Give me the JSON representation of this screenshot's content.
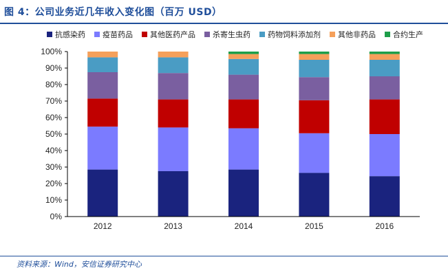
{
  "figure": {
    "title": "图 4：公司业务近几年收入变化图（百万 USD）",
    "source": "资料来源：Wind，安信证券研究中心"
  },
  "chart_data": {
    "type": "bar",
    "stacked": true,
    "percent": true,
    "categories": [
      "2012",
      "2013",
      "2014",
      "2015",
      "2016"
    ],
    "ylim": [
      0,
      100
    ],
    "yticks": [
      "0%",
      "10%",
      "20%",
      "30%",
      "40%",
      "50%",
      "60%",
      "70%",
      "80%",
      "90%",
      "100%"
    ],
    "legend_position": "top",
    "series": [
      {
        "name": "抗感染药",
        "color": "#1a237e",
        "values": [
          28.5,
          27.5,
          28.5,
          26.5,
          24.5
        ]
      },
      {
        "name": "疫苗药品",
        "color": "#7b7bff",
        "values": [
          26.0,
          26.5,
          25.0,
          24.0,
          25.5
        ]
      },
      {
        "name": "其他医药产品",
        "color": "#c00000",
        "values": [
          17.0,
          17.0,
          17.5,
          20.0,
          21.0
        ]
      },
      {
        "name": "杀寄生虫药",
        "color": "#7a5fa0",
        "values": [
          16.0,
          16.0,
          15.0,
          14.0,
          14.0
        ]
      },
      {
        "name": "药物饲料添加剂",
        "color": "#4a9cc4",
        "values": [
          9.0,
          9.5,
          9.5,
          10.5,
          10.0
        ]
      },
      {
        "name": "其他非药品",
        "color": "#f5a05a",
        "values": [
          3.5,
          3.5,
          3.0,
          3.5,
          3.5
        ]
      },
      {
        "name": "合约生产",
        "color": "#1e9e4a",
        "values": [
          0.0,
          0.0,
          1.5,
          1.5,
          1.5
        ]
      }
    ]
  }
}
